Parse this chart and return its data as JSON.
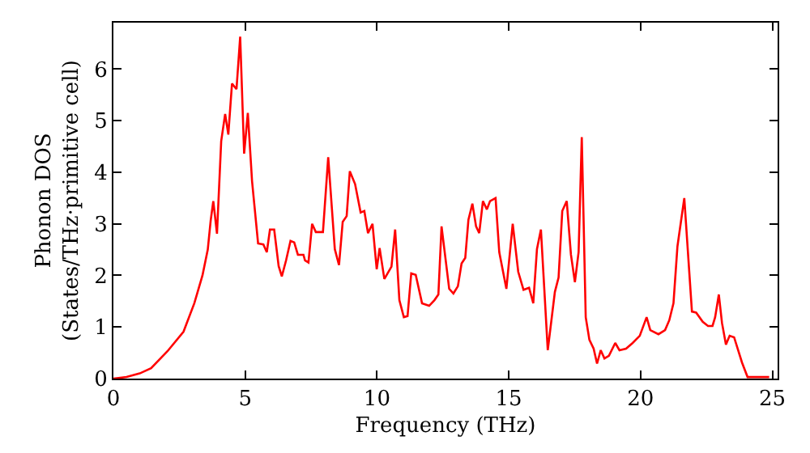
{
  "chart_data": {
    "type": "line",
    "xlabel": "Frequency (THz)",
    "ylabel": "Phonon DOS\n(States/THz·primitive cell)",
    "xlim": [
      0,
      25.2
    ],
    "ylim": [
      0,
      6.9
    ],
    "xticks": [
      0,
      5,
      10,
      15,
      20,
      25
    ],
    "yticks": [
      0,
      1,
      2,
      3,
      4,
      5,
      6
    ],
    "grid": false,
    "marker": "none",
    "line_style": "solid",
    "series": [
      {
        "color": "#ff0000",
        "x": [
          0,
          0.5,
          1.0,
          1.43,
          2.05,
          2.66,
          3.07,
          3.38,
          3.58,
          3.69,
          3.79,
          3.93,
          4.09,
          4.24,
          4.36,
          4.5,
          4.67,
          4.81,
          4.96,
          5.1,
          5.26,
          5.49,
          5.69,
          5.82,
          5.94,
          6.1,
          6.27,
          6.39,
          6.55,
          6.72,
          6.86,
          7.0,
          7.21,
          7.27,
          7.4,
          7.54,
          7.68,
          7.95,
          8.15,
          8.4,
          8.56,
          8.7,
          8.85,
          8.97,
          9.17,
          9.38,
          9.52,
          9.66,
          9.83,
          9.99,
          10.1,
          10.28,
          10.55,
          10.69,
          10.85,
          11.02,
          11.16,
          11.3,
          11.47,
          11.71,
          11.98,
          12.18,
          12.33,
          12.45,
          12.74,
          12.9,
          13.07,
          13.21,
          13.35,
          13.47,
          13.62,
          13.76,
          13.88,
          14.02,
          14.17,
          14.29,
          14.5,
          14.64,
          14.91,
          15.15,
          15.36,
          15.56,
          15.77,
          15.93,
          16.07,
          16.22,
          16.48,
          16.75,
          16.89,
          17.03,
          17.2,
          17.36,
          17.51,
          17.65,
          17.77,
          17.92,
          18.06,
          18.22,
          18.35,
          18.49,
          18.63,
          18.8,
          19.04,
          19.2,
          19.45,
          19.7,
          19.97,
          20.23,
          20.37,
          20.68,
          20.93,
          21.09,
          21.25,
          21.4,
          21.66,
          21.95,
          22.11,
          22.36,
          22.56,
          22.73,
          22.83,
          22.97,
          23.09,
          23.24,
          23.38,
          23.55,
          23.85,
          24.06,
          24.88
        ],
        "values": [
          0,
          0.03,
          0.1,
          0.2,
          0.53,
          0.91,
          1.46,
          2.0,
          2.5,
          3.06,
          3.44,
          2.81,
          4.6,
          5.13,
          4.73,
          5.72,
          5.61,
          6.63,
          4.36,
          5.15,
          3.83,
          2.62,
          2.6,
          2.45,
          2.89,
          2.89,
          2.18,
          1.98,
          2.29,
          2.67,
          2.64,
          2.4,
          2.4,
          2.29,
          2.25,
          3.0,
          2.84,
          2.84,
          4.29,
          2.51,
          2.2,
          3.04,
          3.15,
          4.02,
          3.77,
          3.22,
          3.25,
          2.82,
          3.0,
          2.12,
          2.53,
          1.93,
          2.17,
          2.89,
          1.52,
          1.19,
          1.21,
          2.04,
          2.01,
          1.46,
          1.41,
          1.52,
          1.63,
          2.95,
          1.74,
          1.65,
          1.79,
          2.23,
          2.34,
          3.08,
          3.39,
          2.95,
          2.82,
          3.44,
          3.28,
          3.44,
          3.5,
          2.45,
          1.74,
          3.0,
          2.07,
          1.72,
          1.76,
          1.46,
          2.51,
          2.89,
          0.55,
          1.68,
          1.96,
          3.25,
          3.44,
          2.4,
          1.87,
          2.45,
          4.68,
          1.19,
          0.75,
          0.58,
          0.29,
          0.55,
          0.39,
          0.44,
          0.69,
          0.55,
          0.58,
          0.69,
          0.83,
          1.19,
          0.94,
          0.86,
          0.94,
          1.13,
          1.46,
          2.56,
          3.5,
          1.3,
          1.28,
          1.1,
          1.02,
          1.02,
          1.19,
          1.63,
          1.08,
          0.66,
          0.83,
          0.8,
          0.31,
          0.03,
          0.03
        ]
      }
    ]
  }
}
